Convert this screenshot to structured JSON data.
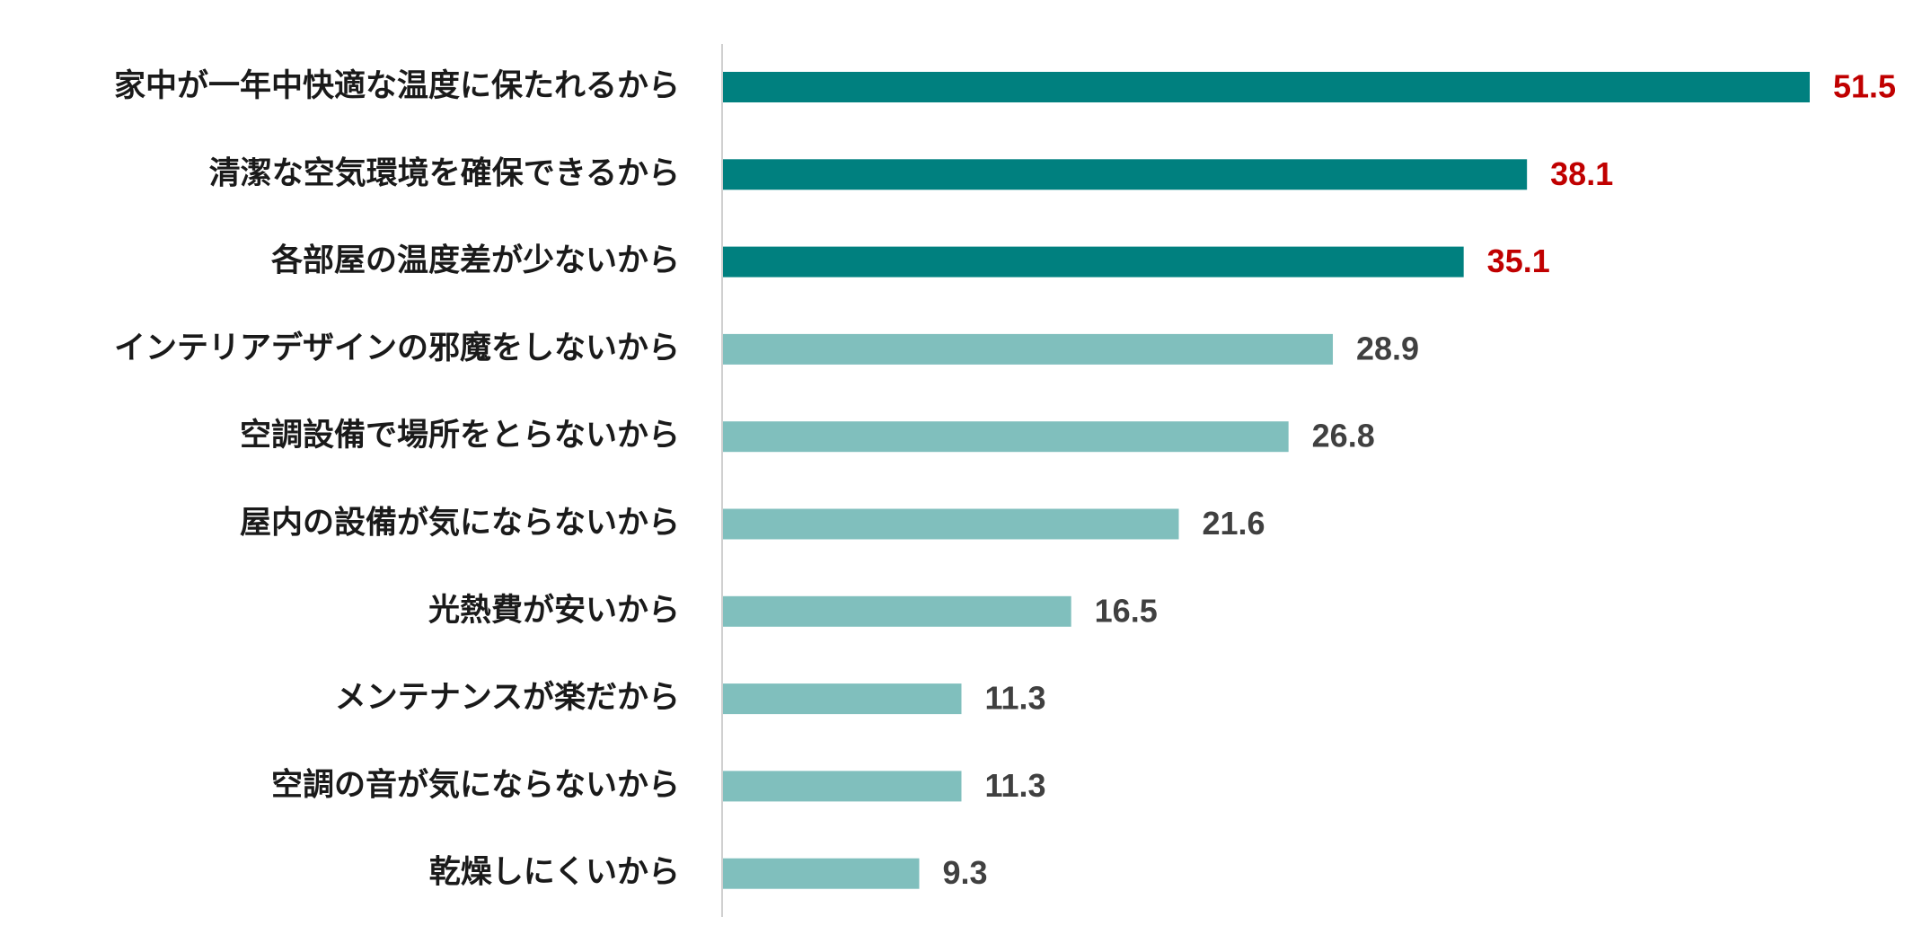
{
  "chart_data": {
    "type": "bar",
    "orientation": "horizontal",
    "categories": [
      "家中が一年中快適な温度に保たれるから",
      "清潔な空気環境を確保できるから",
      "各部屋の温度差が少ないから",
      "インテリアデザインの邪魔をしないから",
      "空調設備で場所をとらないから",
      "屋内の設備が気にならないから",
      "光熱費が安いから",
      "メンテナンスが楽だから",
      "空調の音が気にならないから",
      "乾燥しにくいから"
    ],
    "values": [
      51.5,
      38.1,
      35.1,
      28.9,
      26.8,
      21.6,
      16.5,
      11.3,
      11.3,
      9.3
    ],
    "colors": [
      "#00807f",
      "#00807f",
      "#00807f",
      "#80bfbd",
      "#80bfbd",
      "#80bfbd",
      "#80bfbd",
      "#80bfbd",
      "#80bfbd",
      "#80bfbd"
    ],
    "value_label_colors": [
      "#c00000",
      "#c00000",
      "#c00000",
      "#404040",
      "#404040",
      "#404040",
      "#404040",
      "#404040",
      "#404040",
      "#404040"
    ]
  }
}
